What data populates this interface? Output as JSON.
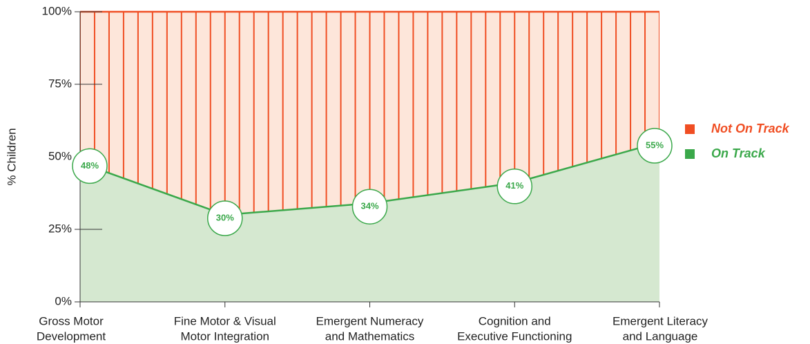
{
  "chart_data": {
    "type": "area",
    "y_label": "% Children",
    "categories": [
      [
        "Gross Motor",
        "Development"
      ],
      [
        "Fine Motor & Visual",
        "Motor Integration"
      ],
      [
        "Emergent Numeracy",
        "and Mathematics"
      ],
      [
        "Cognition and",
        "Executive Functioning"
      ],
      [
        "Emergent Literacy",
        "and Language"
      ]
    ],
    "series": [
      {
        "name": "Not On Track",
        "color": "#f04e23",
        "values": [
          52,
          70,
          66,
          59,
          45
        ]
      },
      {
        "name": "On Track",
        "color": "#3aa84a",
        "values": [
          48,
          30,
          34,
          41,
          55
        ],
        "value_labels": [
          "48%",
          "30%",
          "34%",
          "41%",
          "55%"
        ]
      }
    ],
    "stack_order": [
      "On Track",
      "Not On Track"
    ],
    "ylim": [
      0,
      100
    ],
    "yticks": [
      {
        "value": 0,
        "label": "0%"
      },
      {
        "value": 25,
        "label": "25%"
      },
      {
        "value": 50,
        "label": "50%"
      },
      {
        "value": 75,
        "label": "75%"
      },
      {
        "value": 100,
        "label": "100%"
      }
    ]
  }
}
